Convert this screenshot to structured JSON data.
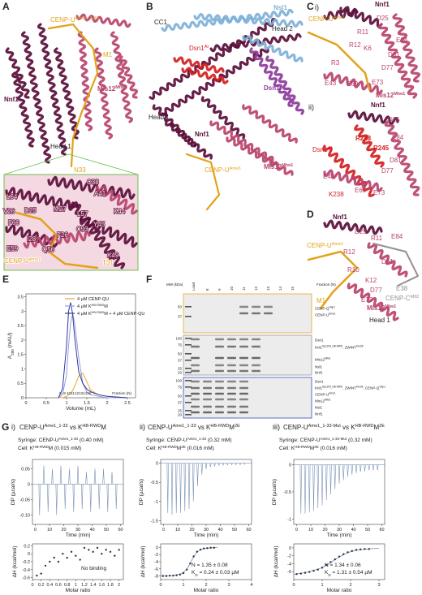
{
  "panel_a": {
    "letter": "A",
    "labels": [
      [
        "CENP-U",
        "Ame1_1-33"
      ],
      "M1",
      [
        "Mis12",
        "Mtw1"
      ],
      "Nnf1",
      "Head 1",
      "N33"
    ],
    "inset_labels": [
      "L64",
      "C38",
      "V26",
      "D25",
      "A41",
      "M27",
      "L57",
      "K44",
      "F60",
      "Y45",
      "I28",
      "C53",
      "F26",
      "E59",
      "Q56",
      [
        "CENP-U",
        "Ame1"
      ],
      "K49",
      "T31"
    ]
  },
  "panel_b": {
    "letter": "B",
    "labels": [
      "CC1",
      "Nsl1",
      "Head 2",
      [
        "Dsn1",
        "AI"
      ],
      "Dsn1",
      "Head 1",
      "Nnf1",
      [
        "CENP-U",
        "Ame1"
      ],
      [
        "Mis12",
        "Mtw1"
      ]
    ]
  },
  "panel_c": {
    "letter": "C",
    "sub_i": "i)",
    "sub_ii": "ii)",
    "labels_i": [
      "Nnf1",
      [
        "CENP-U",
        "Ame1"
      ],
      "D25",
      "R11",
      "R12",
      "E84",
      "K6",
      "D81",
      "R3",
      "D77",
      "E43",
      "E69",
      "E73",
      [
        "Mis12",
        "Mtw1"
      ]
    ],
    "labels_ii": [
      "Nnf1",
      "D25",
      "R248",
      [
        "Dsn1",
        "AI"
      ],
      "R245",
      "E84",
      "D81",
      "E43",
      "D77",
      "K238",
      "E69",
      "E73"
    ]
  },
  "panel_d": {
    "letter": "D",
    "labels": [
      "Nnf1",
      [
        "CENP-U",
        "Ame1"
      ],
      "D25",
      "R11",
      "E84",
      "R12",
      "D81",
      "R10",
      "K12",
      "E38",
      [
        "CENP-C",
        "Mif2"
      ],
      "M1",
      "D77",
      "E73",
      [
        "Mis12",
        "Mtw1"
      ],
      "Head 1"
    ]
  },
  "panel_e": {
    "letter": "E",
    "chart": {
      "type": "line",
      "xlabel": "Volume (mL)",
      "ylabel": [
        "A",
        "280",
        " (mAU)"
      ],
      "xlim": [
        0,
        2.7
      ],
      "ylim": [
        0,
        3.6
      ],
      "xticks": [
        0,
        0.5,
        1,
        1.5,
        2,
        2.5
      ],
      "yticks": [
        0,
        0.5,
        1,
        1.5,
        2,
        2.5,
        3,
        3.5
      ],
      "x": [
        0.8,
        0.9,
        1.0,
        1.05,
        1.1,
        1.15,
        1.2,
        1.3,
        1.4,
        1.5,
        1.6,
        1.8,
        2.0,
        2.5
      ],
      "series": [
        {
          "name": [
            "4 μM CENP-QU"
          ],
          "color": "#e8a825",
          "values": [
            0,
            0,
            0.05,
            0.1,
            0.15,
            0.25,
            0.4,
            0.75,
            0.85,
            0.55,
            0.25,
            0.1,
            0.05,
            0
          ]
        },
        {
          "name": [
            "4 μM K",
            "HB-RWD",
            "M"
          ],
          "color": "#9a9ae0",
          "values": [
            0,
            0.1,
            0.8,
            1.8,
            2.6,
            2.9,
            2.6,
            1.4,
            0.5,
            0.2,
            0.1,
            0.05,
            0,
            0
          ]
        },
        {
          "name": [
            "4 μM K",
            "HB-RWD",
            "M + 4 μM CENP-QU"
          ],
          "color": "#2b3a9e",
          "values": [
            0,
            0.3,
            1.8,
            3.0,
            3.3,
            2.9,
            2.1,
            0.9,
            0.5,
            0.3,
            0.2,
            0.1,
            0.05,
            0
          ]
        }
      ],
      "fractions": [
        8,
        9,
        10,
        11,
        12,
        13,
        14,
        15
      ],
      "fraction_label": "Fraction (N)"
    }
  },
  "panel_f": {
    "letter": "F",
    "mw_header": "MW (kDa)",
    "load": "Load",
    "fractions": [
      8,
      9,
      10,
      11,
      12,
      13,
      14,
      15
    ],
    "fraction_label": "Fraction (N)",
    "gels": [
      {
        "markers": [
          50,
          37
        ],
        "bands": [
          [
            "CENP-Q",
            "Okp1"
          ],
          [
            "CENP-U",
            "Ame1"
          ]
        ]
      },
      {
        "markers": [
          100,
          75,
          50,
          37,
          25,
          20
        ],
        "bands": [
          "Dsn1",
          [
            "Knl1",
            "Spc105_HB-RWD",
            ", ZWINT",
            "Kre28"
          ],
          [
            "Mis12",
            "Mtw1"
          ],
          "Nsl1",
          "Nnf1"
        ]
      },
      {
        "markers": [
          100,
          75,
          50,
          37,
          25,
          20
        ],
        "bands": [
          "Dsn1",
          [
            "Knl1",
            "Spc105_HB-RWD",
            ", ZWINT",
            "Kre28",
            ", CENP-Q",
            "Okp1"
          ],
          [
            "CENP-U",
            "Ame1"
          ],
          [
            "Mis12",
            "Mtw1"
          ],
          "Nsl1",
          "Nnf1"
        ]
      }
    ]
  },
  "panel_g": {
    "letter": "G",
    "itc": [
      {
        "label": "i)",
        "title": [
          "CENP-U",
          "Ame1_1-33",
          " vs K",
          "HB-RWD",
          "M"
        ],
        "syringe": [
          "Syringe: CENP-U",
          "Ame1_1-33",
          " (0.40 mM)"
        ],
        "cell": [
          "Cell: K",
          "HB-RWD",
          "M (0.015 mM)"
        ],
        "dp": {
          "type": "spikes",
          "xlabel": "Time (min)",
          "ylabel": [
            "DP (µcal/s)"
          ],
          "xlim": [
            -2,
            62
          ],
          "ylim": [
            -0.13,
            0.08
          ],
          "xticks": [
            0,
            10,
            20,
            30,
            40,
            50,
            60
          ],
          "yticks": [
            0.05,
            0,
            -0.05,
            {
              "value": -0.1,
              "label": "-0.10"
            }
          ],
          "x": [
            3,
            6,
            9,
            12,
            15,
            18,
            21,
            24,
            27,
            30,
            33,
            36,
            39,
            42,
            45,
            48,
            51,
            54,
            57
          ],
          "values": [
            -0.1,
            0.06,
            -0.09,
            0.05,
            -0.1,
            0.06,
            -0.08,
            0.05,
            -0.09,
            0.06,
            -0.08,
            0.04,
            -0.09,
            0.05,
            -0.08,
            0.05,
            -0.09,
            0.04,
            -0.08
          ]
        },
        "dh": {
          "type": "scatter",
          "xlabel": "Molar ratio",
          "ylabel": [
            "ΔH (kcal/mol)"
          ],
          "xlim": [
            0,
            2.1
          ],
          "ylim": [
            -0.65,
            0.25
          ],
          "xticks": [
            0,
            0.2,
            0.4,
            0.6,
            0.8,
            1,
            1.2,
            1.4,
            1.6,
            1.8,
            2
          ],
          "yticks": [
            0.2,
            0,
            -0.2,
            -0.4,
            -0.6
          ],
          "x": [
            0.1,
            0.2,
            0.3,
            0.4,
            0.5,
            0.6,
            0.7,
            0.8,
            0.9,
            1.0,
            1.1,
            1.2,
            1.3,
            1.4,
            1.5,
            1.6,
            1.7,
            1.8,
            1.9,
            2.0
          ],
          "values": [
            -0.55,
            -0.5,
            -0.3,
            -0.2,
            -0.1,
            -0.2,
            0.0,
            -0.1,
            0.05,
            -0.05,
            -0.15,
            0.15,
            0.1,
            0.05,
            0.15,
            0.0,
            0.1,
            0.05,
            -0.05,
            0.1
          ]
        },
        "note": "No binding"
      },
      {
        "label": "ii)",
        "title": [
          "CENP-U",
          "Ame1_1-33",
          " vs K",
          "HB-RWD",
          "M",
          "2E"
        ],
        "syringe": [
          "Syringe: CENP-U",
          "Ame1_1-33",
          " (0.32 mM)"
        ],
        "cell": [
          "Cell: K",
          "HB-RWD",
          "M",
          "2E",
          " (0.016 mM)"
        ],
        "dp": {
          "type": "spikes",
          "xlabel": "Time (min)",
          "ylabel": [
            "DP (µcal/s)"
          ],
          "xlim": [
            -2,
            62
          ],
          "ylim": [
            -1.6,
            0.1
          ],
          "xticks": [
            0,
            10,
            20,
            30,
            40,
            50,
            60
          ],
          "yticks": [
            0,
            -0.5,
            -1,
            -1.5
          ],
          "x": [
            3,
            6,
            9,
            12,
            15,
            18,
            21,
            24,
            27,
            30,
            33,
            36,
            39,
            42,
            45,
            48,
            51,
            54,
            57
          ],
          "values": [
            -1.3,
            -1.35,
            -1.3,
            -1.3,
            -1.25,
            -1.2,
            -1.0,
            -0.6,
            -0.3,
            -0.15,
            -0.1,
            -0.08,
            -0.06,
            -0.05,
            -0.05,
            -0.04,
            -0.04,
            -0.04,
            -0.03
          ]
        },
        "dh": {
          "type": "scatter",
          "xlabel": "Molar ratio",
          "ylabel": [
            "ΔH (kcal/mol)"
          ],
          "xlim": [
            0,
            4
          ],
          "ylim": [
            -9,
            1
          ],
          "xticks": [
            0,
            1,
            2,
            3,
            4
          ],
          "yticks": [
            0,
            -2,
            -4,
            -6,
            -8
          ],
          "x": [
            0.1,
            0.25,
            0.4,
            0.55,
            0.7,
            0.85,
            1.0,
            1.15,
            1.3,
            1.45,
            1.6,
            1.75,
            1.9,
            2.05,
            2.2,
            2.35
          ],
          "values": [
            -8,
            -8,
            -7.9,
            -7.9,
            -7.8,
            -7.6,
            -7.2,
            -6.2,
            -4.5,
            -2.5,
            -1.2,
            -0.6,
            -0.3,
            -0.2,
            -0.1,
            -0.1
          ],
          "fit": {
            "x": [
              0,
              0.5,
              0.9,
              1.1,
              1.25,
              1.4,
              1.55,
              1.7,
              1.9,
              2.2,
              2.5
            ],
            "values": [
              -8,
              -7.9,
              -7.4,
              -6.5,
              -5,
              -3.2,
              -1.7,
              -0.8,
              -0.3,
              -0.1,
              0
            ]
          }
        },
        "result": [
          "N = 1.35 ± 0.08",
          [
            "K",
            "D",
            " = 0.24 ± 0.03 µM"
          ]
        ]
      },
      {
        "label": "iii)",
        "title": [
          "CENP-U",
          "Ame1_1-33-Mut",
          " vs K",
          "HB-RWD",
          "M",
          "2E"
        ],
        "syringe": [
          "Syringe: CENP-U",
          "Ame1_1-33-Mut",
          " (0.32 mM)"
        ],
        "cell": [
          "Cell: K",
          "HB-RWD",
          "M",
          "2E",
          " (0.016 mM)"
        ],
        "dp": {
          "type": "spikes",
          "xlabel": "Time (min)",
          "ylabel": [
            "DP (µcal/s)"
          ],
          "xlim": [
            -2,
            62
          ],
          "ylim": [
            -1.1,
            0.1
          ],
          "xticks": [
            0,
            10,
            20,
            30,
            40,
            50,
            60
          ],
          "yticks": [
            0,
            -0.5,
            -1
          ],
          "x": [
            3,
            6,
            9,
            12,
            15,
            18,
            21,
            24,
            27,
            30,
            33,
            36,
            39,
            42,
            45,
            48,
            51,
            54,
            57
          ],
          "values": [
            -0.9,
            -0.9,
            -0.88,
            -0.85,
            -0.8,
            -0.75,
            -0.65,
            -0.55,
            -0.45,
            -0.35,
            -0.28,
            -0.22,
            -0.18,
            -0.15,
            -0.13,
            -0.12,
            -0.1,
            -0.1,
            -0.1
          ]
        },
        "dh": {
          "type": "scatter",
          "xlabel": "Molar ratio",
          "ylabel": [
            "ΔH (kcal/mol)"
          ],
          "xlim": [
            0,
            3.2
          ],
          "ylim": [
            -8,
            1
          ],
          "xticks": [
            0,
            1,
            2,
            3
          ],
          "yticks": [
            0,
            -2,
            -4,
            -6
          ],
          "x": [
            0.1,
            0.25,
            0.4,
            0.55,
            0.7,
            0.85,
            1.0,
            1.15,
            1.3,
            1.45,
            1.6,
            1.75,
            1.9,
            2.05,
            2.2,
            2.35,
            2.5,
            2.65
          ],
          "values": [
            -6.6,
            -6.5,
            -6.3,
            -6.1,
            -5.8,
            -5.5,
            -5,
            -4.3,
            -3.6,
            -2.9,
            -2.2,
            -1.6,
            -1.1,
            -0.8,
            -0.5,
            -0.4,
            -0.3,
            -0.3
          ],
          "fit": {
            "x": [
              0,
              0.5,
              1,
              1.3,
              1.6,
              1.9,
              2.2,
              2.6,
              3
            ],
            "values": [
              -6.7,
              -6.1,
              -5,
              -3.7,
              -2.3,
              -1.2,
              -0.6,
              -0.3,
              -0.1
            ]
          }
        },
        "result": [
          "N = 1.34 ± 0.06",
          [
            "K",
            "D",
            " = 1.31 ± 0.54 µM"
          ]
        ]
      }
    ]
  }
}
